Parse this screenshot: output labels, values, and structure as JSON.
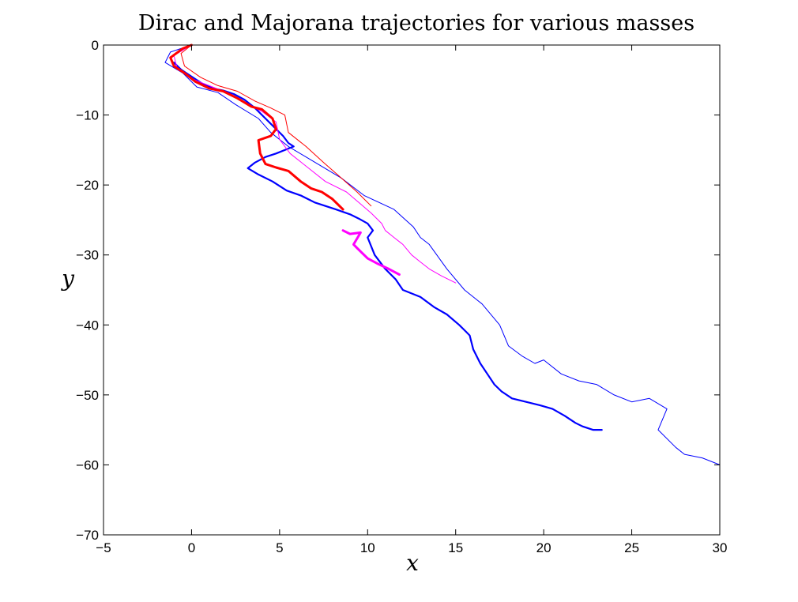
{
  "chart_data": {
    "type": "line",
    "title": "Dirac and Majorana trajectories for various masses",
    "xlabel": "x",
    "ylabel": "y",
    "xlim": [
      -5,
      30
    ],
    "ylim": [
      -70,
      0
    ],
    "xticks": [
      -5,
      0,
      5,
      10,
      15,
      20,
      25,
      30
    ],
    "yticks": [
      0,
      -10,
      -20,
      -30,
      -40,
      -50,
      -60,
      -70
    ],
    "xtick_labels": [
      "−5",
      "0",
      "5",
      "10",
      "15",
      "20",
      "25",
      "30"
    ],
    "ytick_labels": [
      "0",
      "−10",
      "−20",
      "−30",
      "−40",
      "−50",
      "−60",
      "−70"
    ],
    "grid": false,
    "series": [
      {
        "name": "blue-long",
        "color": "#0000ff",
        "width": 1,
        "x": [
          0,
          -1.2,
          -1.5,
          -0.5,
          0.3,
          1.5,
          2.5,
          3.8,
          4.5,
          5.5,
          6.5,
          8.5,
          9.8,
          11.5,
          12.6,
          13.0,
          13.5,
          14.5,
          15.5,
          16.5,
          17.5,
          18.0,
          18.8,
          19.5,
          20.0,
          21.0,
          22.0,
          23.0,
          24.0,
          25.0,
          26.0,
          27.0,
          26.5,
          27.5,
          28.0,
          29.0,
          30.0
        ],
        "y": [
          0,
          -1.0,
          -2.5,
          -4.0,
          -6.0,
          -6.8,
          -8.5,
          -10.5,
          -12.5,
          -14.5,
          -16.0,
          -19.0,
          -21.5,
          -23.5,
          -26.0,
          -27.5,
          -28.5,
          -32.0,
          -35.0,
          -37.0,
          -40.0,
          -43.0,
          -44.5,
          -45.5,
          -45.0,
          -47.0,
          -48.0,
          -48.5,
          -50.0,
          -51.0,
          -50.5,
          -52.0,
          -55.0,
          -57.5,
          -58.5,
          -59.0,
          -60.0
        ]
      },
      {
        "name": "blue-coils",
        "color": "#0000ff",
        "width": 2.2,
        "x": [
          -1.0,
          -0.6,
          0.0,
          0.6,
          1.2,
          1.8,
          2.4,
          3.0,
          3.6,
          4.2,
          4.8,
          5.2,
          5.5,
          5.8,
          4.8,
          4.2,
          3.6,
          3.2,
          3.8,
          4.6,
          5.4,
          6.2,
          7.0,
          7.6,
          8.2,
          9.0,
          9.5,
          10.0,
          10.3,
          10.0,
          10.4,
          11.0,
          11.6,
          12.0,
          13.0,
          13.8,
          14.5,
          15.2,
          15.6,
          15.8,
          16.0,
          16.4,
          16.8,
          17.2,
          17.6,
          18.2,
          19.0,
          19.8,
          20.5,
          21.2,
          21.8,
          22.2,
          22.8,
          23.3
        ],
        "y": [
          -2.5,
          -3.5,
          -4.5,
          -5.5,
          -6.2,
          -6.5,
          -7.0,
          -7.8,
          -9.0,
          -10.5,
          -12.0,
          -13.0,
          -14.0,
          -14.5,
          -15.5,
          -16.0,
          -16.8,
          -17.6,
          -18.5,
          -19.5,
          -20.8,
          -21.5,
          -22.5,
          -23.0,
          -23.5,
          -24.2,
          -24.8,
          -25.5,
          -26.5,
          -27.5,
          -30.0,
          -32.0,
          -33.5,
          -35.0,
          -36.0,
          -37.5,
          -38.5,
          -40.0,
          -41.0,
          -41.5,
          -43.5,
          -45.5,
          -47.0,
          -48.5,
          -49.5,
          -50.5,
          -51.0,
          -51.5,
          -52.0,
          -53.0,
          -54.0,
          -54.5,
          -55.0,
          -55.0
        ]
      },
      {
        "name": "magenta-thin",
        "color": "#ff00ff",
        "width": 1,
        "x": [
          0.0,
          -1.0,
          -0.8,
          0.2,
          1.2,
          2.2,
          3.2,
          4.0,
          4.8,
          5.0,
          5.6,
          6.6,
          7.6,
          8.8,
          9.5,
          10.2,
          10.8,
          11.0,
          11.5,
          12.0,
          12.5,
          13.0,
          13.5,
          14.2,
          15.0
        ],
        "y": [
          0.0,
          -1.5,
          -3.5,
          -5.0,
          -6.0,
          -7.0,
          -8.5,
          -9.5,
          -11.0,
          -13.5,
          -15.5,
          -17.5,
          -19.5,
          -21.0,
          -22.5,
          -24.0,
          -25.5,
          -26.5,
          -27.5,
          -28.5,
          -30.0,
          -31.0,
          -32.0,
          -33.0,
          -34.0
        ]
      },
      {
        "name": "magenta-thick",
        "color": "#ff00ff",
        "width": 3,
        "x": [
          8.6,
          9.0,
          9.6,
          9.2,
          9.4,
          10.0,
          10.6,
          11.2,
          11.8
        ],
        "y": [
          -26.5,
          -27.0,
          -26.8,
          -28.5,
          -29.0,
          -30.5,
          -31.3,
          -32.0,
          -32.8
        ]
      },
      {
        "name": "red-main",
        "color": "#ff0000",
        "width": 3,
        "x": [
          0.0,
          -0.5,
          -1.2,
          -1.0,
          -0.4,
          0.2,
          1.0,
          1.8,
          2.6,
          3.4,
          4.0,
          4.6,
          4.8,
          4.5,
          3.8,
          3.9,
          4.2,
          4.8,
          5.5,
          6.2,
          6.8,
          7.4,
          8.0,
          8.6
        ],
        "y": [
          0.0,
          -0.5,
          -1.8,
          -3.0,
          -4.0,
          -5.2,
          -6.2,
          -6.6,
          -7.6,
          -8.8,
          -9.2,
          -10.5,
          -12.0,
          -13.0,
          -13.6,
          -15.5,
          -17.0,
          -17.5,
          -18.0,
          -19.5,
          -20.5,
          -21.0,
          -22.0,
          -23.5
        ]
      },
      {
        "name": "red-thin",
        "color": "#ff0000",
        "width": 1,
        "x": [
          0.0,
          -0.6,
          -0.4,
          0.5,
          1.5,
          2.6,
          3.6,
          4.5,
          5.3,
          5.5,
          6.5,
          7.5,
          8.5,
          9.4,
          10.2
        ],
        "y": [
          0.0,
          -1.2,
          -3.0,
          -4.6,
          -5.8,
          -6.6,
          -8.0,
          -9.0,
          -10.0,
          -12.5,
          -14.5,
          -16.8,
          -19.0,
          -21.0,
          -23.0
        ]
      }
    ]
  }
}
